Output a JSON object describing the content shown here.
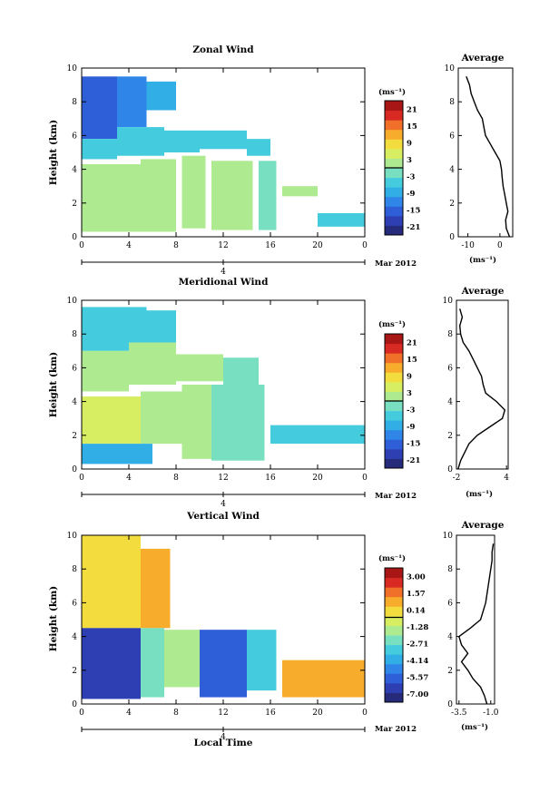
{
  "colors": {
    "cmap": [
      "#262a7a",
      "#2d3fb2",
      "#2f5fd8",
      "#2f86e8",
      "#32aee6",
      "#44ccde",
      "#78e0c0",
      "#aeea90",
      "#d8ee62",
      "#f2dc3e",
      "#f8ac2c",
      "#f0702a",
      "#d82a22",
      "#a81616"
    ]
  },
  "figure": {
    "xlabel": "Local Time",
    "ylabel": "Height (km)",
    "date_label": "Mar 2012",
    "date_tick": "4",
    "unit": "(ms⁻¹)",
    "avg_title": "Average",
    "avg_unit": "(ms⁻¹)"
  },
  "chart_data": [
    {
      "type": "heatmap",
      "title": "Zonal Wind",
      "xticks": [
        "0",
        "4",
        "8",
        "12",
        "16",
        "20",
        "0"
      ],
      "xlim": [
        0,
        24
      ],
      "yticks": [
        "0",
        "2",
        "4",
        "6",
        "8",
        "10"
      ],
      "ylim": [
        0,
        10
      ],
      "colorbar": {
        "title": "(ms⁻¹)",
        "ticks": [
          "21",
          "15",
          "9",
          "3",
          "-3",
          "-9",
          "-15",
          "-21"
        ],
        "range": [
          -24,
          24
        ],
        "zero_line": 0
      },
      "cells": [
        {
          "t0": 0,
          "t1": 3,
          "z0": 5.8,
          "z1": 9.5,
          "v": -14
        },
        {
          "t0": 3,
          "t1": 5.5,
          "z0": 6.5,
          "z1": 9.5,
          "v": -12
        },
        {
          "t0": 5.5,
          "t1": 8,
          "z0": 7.5,
          "z1": 9.2,
          "v": -10
        },
        {
          "t0": 0,
          "t1": 3,
          "z0": 4.6,
          "z1": 5.8,
          "v": -6
        },
        {
          "t0": 3,
          "t1": 7,
          "z0": 4.8,
          "z1": 6.5,
          "v": -5
        },
        {
          "t0": 7,
          "t1": 10,
          "z0": 5,
          "z1": 6.3,
          "v": -4
        },
        {
          "t0": 10,
          "t1": 14,
          "z0": 5.2,
          "z1": 6.3,
          "v": -5
        },
        {
          "t0": 14,
          "t1": 16,
          "z0": 4.8,
          "z1": 5.8,
          "v": -4
        },
        {
          "t0": 0,
          "t1": 5,
          "z0": 0.3,
          "z1": 4.3,
          "v": 3
        },
        {
          "t0": 5,
          "t1": 8,
          "z0": 0.3,
          "z1": 4.6,
          "v": 2
        },
        {
          "t0": 8.5,
          "t1": 10.5,
          "z0": 0.5,
          "z1": 4.8,
          "v": 0
        },
        {
          "t0": 11,
          "t1": 14.5,
          "z0": 0.4,
          "z1": 4.5,
          "v": 1
        },
        {
          "t0": 15,
          "t1": 16.5,
          "z0": 0.4,
          "z1": 4.5,
          "v": -2
        },
        {
          "t0": 17,
          "t1": 20,
          "z0": 2.4,
          "z1": 3,
          "v": 3
        },
        {
          "t0": 20,
          "t1": 24,
          "z0": 0.6,
          "z1": 1.4,
          "v": -4
        }
      ],
      "average": {
        "xticks": [
          "-10",
          "0"
        ],
        "xlim": [
          -13,
          4
        ],
        "profile": [
          [
            0,
            3
          ],
          [
            0.5,
            2
          ],
          [
            1,
            1.8
          ],
          [
            1.5,
            2.5
          ],
          [
            2,
            2
          ],
          [
            2.5,
            1.5
          ],
          [
            3,
            1
          ],
          [
            3.5,
            0.7
          ],
          [
            4,
            0.5
          ],
          [
            4.5,
            0
          ],
          [
            5,
            -1.5
          ],
          [
            5.5,
            -3
          ],
          [
            6,
            -4.5
          ],
          [
            6.5,
            -5
          ],
          [
            7,
            -5.5
          ],
          [
            7.5,
            -7
          ],
          [
            8,
            -8
          ],
          [
            8.5,
            -9
          ],
          [
            9,
            -9.5
          ],
          [
            9.5,
            -10.5
          ]
        ]
      }
    },
    {
      "type": "heatmap",
      "title": "Meridional Wind",
      "xticks": [
        "0",
        "4",
        "8",
        "12",
        "16",
        "20",
        "0"
      ],
      "xlim": [
        0,
        24
      ],
      "yticks": [
        "0",
        "2",
        "4",
        "6",
        "8",
        "10"
      ],
      "ylim": [
        0,
        10
      ],
      "colorbar": {
        "title": "(ms⁻¹)",
        "ticks": [
          "21",
          "15",
          "9",
          "3",
          "-3",
          "-9",
          "-15",
          "-21"
        ],
        "range": [
          -24,
          24
        ],
        "zero_line": 0
      },
      "cells": [
        {
          "t0": 0,
          "t1": 5.5,
          "z0": 7,
          "z1": 9.6,
          "v": -5
        },
        {
          "t0": 5.5,
          "t1": 8,
          "z0": 7.5,
          "z1": 9.4,
          "v": -4
        },
        {
          "t0": 0,
          "t1": 4,
          "z0": 4.6,
          "z1": 7,
          "v": 2
        },
        {
          "t0": 4,
          "t1": 8,
          "z0": 5,
          "z1": 7.5,
          "v": 3
        },
        {
          "t0": 8,
          "t1": 12,
          "z0": 5.2,
          "z1": 6.8,
          "v": 1
        },
        {
          "t0": 12,
          "t1": 15,
          "z0": 5,
          "z1": 6.6,
          "v": -2
        },
        {
          "t0": 0,
          "t1": 5,
          "z0": 1.5,
          "z1": 4.3,
          "v": 4
        },
        {
          "t0": 5,
          "t1": 8.5,
          "z0": 1.5,
          "z1": 4.6,
          "v": 2
        },
        {
          "t0": 8.5,
          "t1": 11,
          "z0": 0.6,
          "z1": 5,
          "v": 0
        },
        {
          "t0": 11,
          "t1": 15.5,
          "z0": 0.5,
          "z1": 5,
          "v": -3
        },
        {
          "t0": 0,
          "t1": 6,
          "z0": 0.3,
          "z1": 1.5,
          "v": -7
        },
        {
          "t0": 16,
          "t1": 24,
          "z0": 1.5,
          "z1": 2.6,
          "v": -4
        }
      ],
      "average": {
        "xticks": [
          "-2",
          "4"
        ],
        "xlim": [
          -2,
          4.2
        ],
        "profile": [
          [
            0,
            -1.8
          ],
          [
            0.5,
            -1.5
          ],
          [
            1,
            -1
          ],
          [
            1.5,
            -0.5
          ],
          [
            2,
            0.5
          ],
          [
            2.5,
            2
          ],
          [
            3,
            3.5
          ],
          [
            3.5,
            3.8
          ],
          [
            4,
            2.8
          ],
          [
            4.5,
            1.5
          ],
          [
            5,
            1.2
          ],
          [
            5.5,
            1
          ],
          [
            6,
            0.5
          ],
          [
            6.5,
            0
          ],
          [
            7,
            -0.5
          ],
          [
            7.5,
            -1.2
          ],
          [
            8,
            -1.5
          ],
          [
            8.5,
            -1.6
          ],
          [
            9,
            -1.3
          ],
          [
            9.5,
            -1.6
          ]
        ]
      }
    },
    {
      "type": "heatmap",
      "title": "Vertical Wind",
      "xticks": [
        "0",
        "4",
        "8",
        "12",
        "16",
        "20",
        "0"
      ],
      "xlim": [
        0,
        24
      ],
      "yticks": [
        "0",
        "2",
        "4",
        "6",
        "8",
        "10"
      ],
      "ylim": [
        0,
        10
      ],
      "colorbar": {
        "title": "(ms⁻¹)",
        "ticks": [
          "3.00",
          "1.57",
          "0.14",
          "-1.28",
          "-2.71",
          "-4.14",
          "-5.57",
          "-7.00"
        ],
        "range": [
          -7.7,
          3.7
        ],
        "zero_line": -0.5
      },
      "cells": [
        {
          "t0": 0,
          "t1": 5,
          "z0": 4.5,
          "z1": 10,
          "v": 0.2
        },
        {
          "t0": 5,
          "t1": 7.5,
          "z0": 4.5,
          "z1": 9.2,
          "v": 0.5
        },
        {
          "t0": 0,
          "t1": 5,
          "z0": 0.3,
          "z1": 4.5,
          "v": -6.5
        },
        {
          "t0": 5,
          "t1": 7,
          "z0": 0.4,
          "z1": 4.5,
          "v": -2.5
        },
        {
          "t0": 7,
          "t1": 10,
          "z0": 1,
          "z1": 4.4,
          "v": -2
        },
        {
          "t0": 10,
          "t1": 14,
          "z0": 0.4,
          "z1": 4.4,
          "v": -6
        },
        {
          "t0": 14,
          "t1": 16.5,
          "z0": 0.8,
          "z1": 4.4,
          "v": -3
        },
        {
          "t0": 17,
          "t1": 24,
          "z0": 0.4,
          "z1": 2.6,
          "v": 1
        }
      ],
      "average": {
        "xticks": [
          "-3.5",
          "-1.0"
        ],
        "xlim": [
          -3.7,
          -0.7
        ],
        "profile": [
          [
            0,
            -1.3
          ],
          [
            0.5,
            -1.5
          ],
          [
            1,
            -1.8
          ],
          [
            1.5,
            -2.4
          ],
          [
            2,
            -2.8
          ],
          [
            2.5,
            -3.3
          ],
          [
            3,
            -2.8
          ],
          [
            3.5,
            -3.3
          ],
          [
            4,
            -3.5
          ],
          [
            4.5,
            -2.6
          ],
          [
            5,
            -1.8
          ],
          [
            5.5,
            -1.6
          ],
          [
            6,
            -1.4
          ],
          [
            6.5,
            -1.3
          ],
          [
            7,
            -1.2
          ],
          [
            7.5,
            -1.1
          ],
          [
            8,
            -1.0
          ],
          [
            8.5,
            -0.9
          ],
          [
            9,
            -0.9
          ],
          [
            9.5,
            -0.8
          ]
        ]
      }
    }
  ]
}
